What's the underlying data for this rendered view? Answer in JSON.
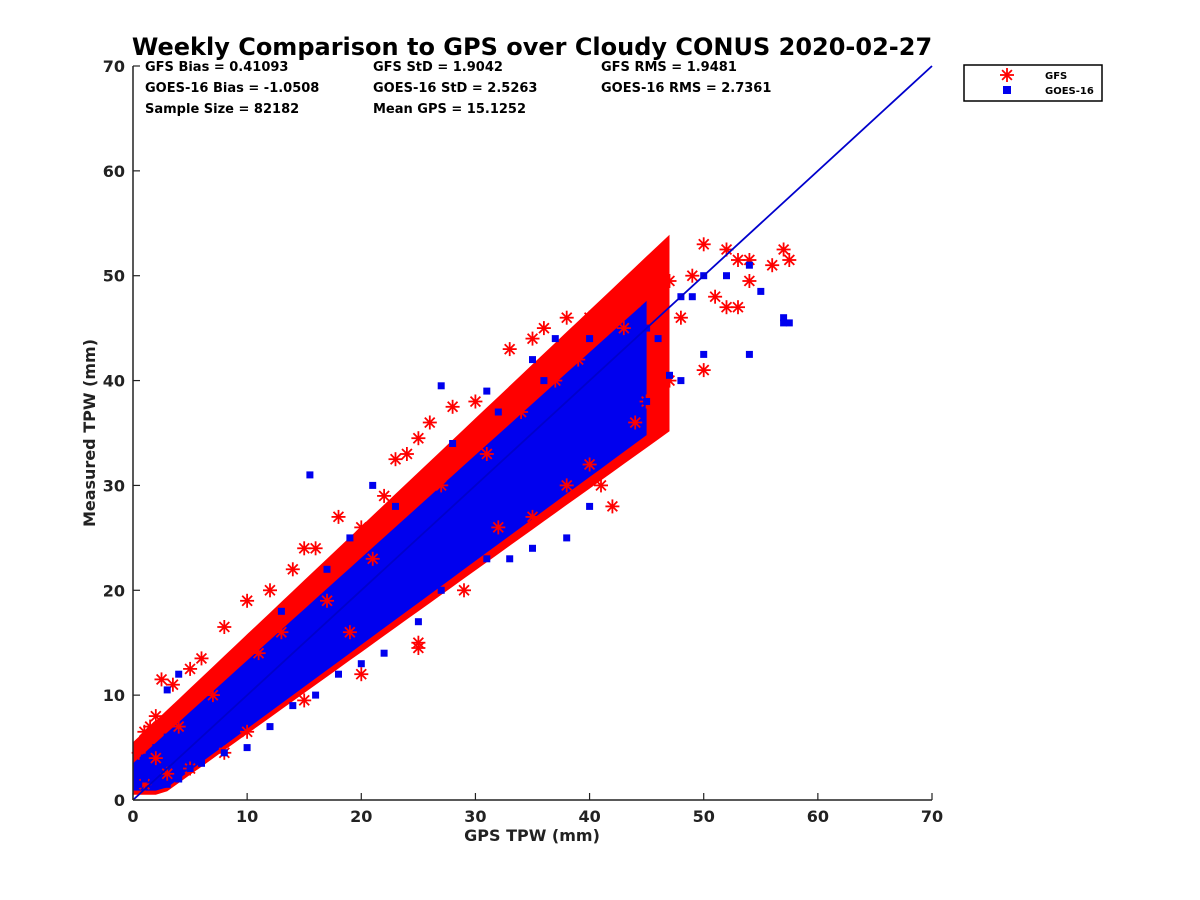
{
  "chart_data": {
    "type": "scatter",
    "title": "Weekly Comparison to GPS over Cloudy CONUS 2020-02-27",
    "xlabel": "GPS TPW (mm)",
    "ylabel": "Measured TPW (mm)",
    "xlim": [
      0,
      70
    ],
    "ylim": [
      0,
      70
    ],
    "x_ticks": [
      "0",
      "10",
      "20",
      "30",
      "40",
      "50",
      "60",
      "70"
    ],
    "y_ticks": [
      "0",
      "10",
      "20",
      "30",
      "40",
      "50",
      "60",
      "70"
    ],
    "grid": false,
    "legend_position": "outside-top-right",
    "stats": [
      "GFS Bias = 0.41093",
      "GFS StD = 1.9042",
      "GFS RMS = 1.9481",
      "GOES-16 Bias = -1.0508",
      "GOES-16 StD = 2.5263",
      "GOES-16 RMS = 2.7361",
      "Sample Size = 82182",
      "Mean GPS = 15.1252"
    ],
    "reference_line": {
      "x": [
        0,
        70
      ],
      "y": [
        0,
        70
      ],
      "color": "#0000cc"
    },
    "series": [
      {
        "name": "GFS",
        "marker": "asterisk",
        "color": "#ff0000",
        "points": [
          [
            0.5,
            4.5
          ],
          [
            1,
            6.5
          ],
          [
            1.5,
            7
          ],
          [
            2,
            8
          ],
          [
            2.5,
            11.5
          ],
          [
            3.5,
            11
          ],
          [
            5,
            12.5
          ],
          [
            6,
            13.5
          ],
          [
            8,
            16.5
          ],
          [
            10,
            19
          ],
          [
            12,
            20
          ],
          [
            14,
            22
          ],
          [
            15,
            24
          ],
          [
            16,
            24
          ],
          [
            18,
            27
          ],
          [
            20,
            26
          ],
          [
            22,
            29
          ],
          [
            23,
            32.5
          ],
          [
            24,
            33
          ],
          [
            25,
            34.5
          ],
          [
            26,
            36
          ],
          [
            28,
            37.5
          ],
          [
            30,
            38
          ],
          [
            33,
            43
          ],
          [
            35,
            44
          ],
          [
            36,
            45
          ],
          [
            38,
            46
          ],
          [
            40,
            46
          ],
          [
            42,
            47.5
          ],
          [
            44,
            47.5
          ],
          [
            45,
            49
          ],
          [
            47,
            49.5
          ],
          [
            49,
            50
          ],
          [
            50,
            53
          ],
          [
            52,
            52.5
          ],
          [
            53,
            51.5
          ],
          [
            54,
            51.5
          ],
          [
            57,
            52.5
          ],
          [
            57.5,
            51.5
          ],
          [
            56,
            51
          ],
          [
            51,
            48
          ],
          [
            52,
            47
          ],
          [
            53,
            47
          ],
          [
            54,
            49.5
          ],
          [
            50,
            41
          ],
          [
            47,
            40
          ],
          [
            45,
            38
          ],
          [
            44,
            36
          ],
          [
            41,
            30
          ],
          [
            42,
            28
          ],
          [
            40,
            32
          ],
          [
            38,
            30
          ],
          [
            35,
            27
          ],
          [
            29,
            20
          ],
          [
            25,
            15
          ],
          [
            25,
            14.5
          ],
          [
            20,
            12
          ],
          [
            15,
            9.5
          ],
          [
            10,
            6.5
          ],
          [
            8,
            4.5
          ],
          [
            5,
            3
          ],
          [
            3,
            2.5
          ],
          [
            1,
            1.5
          ],
          [
            2,
            4
          ],
          [
            4,
            7
          ],
          [
            7,
            10
          ],
          [
            11,
            14
          ],
          [
            13,
            16
          ],
          [
            17,
            19
          ],
          [
            21,
            23
          ],
          [
            27,
            30
          ],
          [
            31,
            33
          ],
          [
            34,
            37
          ],
          [
            37,
            40
          ],
          [
            39,
            42
          ],
          [
            43,
            45
          ],
          [
            46,
            48
          ],
          [
            48,
            46
          ],
          [
            32,
            26
          ],
          [
            19,
            16
          ]
        ]
      },
      {
        "name": "GOES-16",
        "marker": "square",
        "color": "#0000ee",
        "points": [
          [
            0.5,
            1.5
          ],
          [
            1,
            2
          ],
          [
            1.5,
            3
          ],
          [
            2,
            2.5
          ],
          [
            3,
            1.5
          ],
          [
            4,
            2
          ],
          [
            5,
            3
          ],
          [
            6,
            3.5
          ],
          [
            3,
            10.5
          ],
          [
            4,
            12
          ],
          [
            15.5,
            31
          ],
          [
            21,
            30
          ],
          [
            27,
            39.5
          ],
          [
            31,
            39
          ],
          [
            35,
            42
          ],
          [
            37,
            44
          ],
          [
            40,
            44
          ],
          [
            45,
            45
          ],
          [
            48,
            48
          ],
          [
            50,
            50
          ],
          [
            52,
            50
          ],
          [
            54,
            51
          ],
          [
            55,
            48.5
          ],
          [
            57,
            46
          ],
          [
            57.5,
            45.5
          ],
          [
            57,
            45.5
          ],
          [
            54,
            42.5
          ],
          [
            50,
            42.5
          ],
          [
            48,
            40
          ],
          [
            47,
            40.5
          ],
          [
            45,
            38
          ],
          [
            43,
            35
          ],
          [
            40,
            28
          ],
          [
            38,
            25
          ],
          [
            35,
            24
          ],
          [
            33,
            23
          ],
          [
            31,
            23
          ],
          [
            30,
            25
          ],
          [
            27,
            20
          ],
          [
            25,
            17
          ],
          [
            22,
            14
          ],
          [
            20,
            13
          ],
          [
            18,
            12
          ],
          [
            16,
            10
          ],
          [
            14,
            9
          ],
          [
            12,
            7
          ],
          [
            10,
            5
          ],
          [
            8,
            4.5
          ],
          [
            13,
            18
          ],
          [
            17,
            22
          ],
          [
            19,
            25
          ],
          [
            23,
            28
          ],
          [
            28,
            34
          ],
          [
            32,
            37
          ],
          [
            36,
            40
          ],
          [
            38,
            38
          ],
          [
            42,
            41
          ],
          [
            44,
            43
          ],
          [
            46,
            44
          ],
          [
            49,
            48
          ],
          [
            26,
            27
          ],
          [
            24,
            24
          ],
          [
            29,
            31
          ],
          [
            11,
            13
          ],
          [
            9,
            11
          ],
          [
            7,
            8
          ],
          [
            6,
            6
          ],
          [
            2,
            5
          ],
          [
            1,
            4
          ],
          [
            3,
            6
          ]
        ]
      }
    ]
  }
}
